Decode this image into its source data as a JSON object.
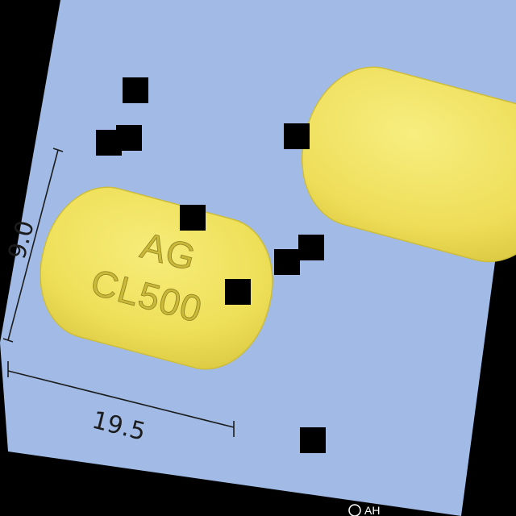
{
  "image": {
    "subject": "two yellow capsule-shaped tablets on a light blue background with dimension marks",
    "background_color": "#a1bbe6",
    "border_color": "#000000"
  },
  "tablet_front": {
    "imprint_line1": "AG",
    "imprint_line2": "CL500",
    "color": "#f1e35a"
  },
  "tablet_side": {
    "color": "#f1e35a"
  },
  "dimensions": {
    "width_label": "19.5",
    "height_label": "9.0"
  },
  "watermark": {
    "text": "AH"
  }
}
